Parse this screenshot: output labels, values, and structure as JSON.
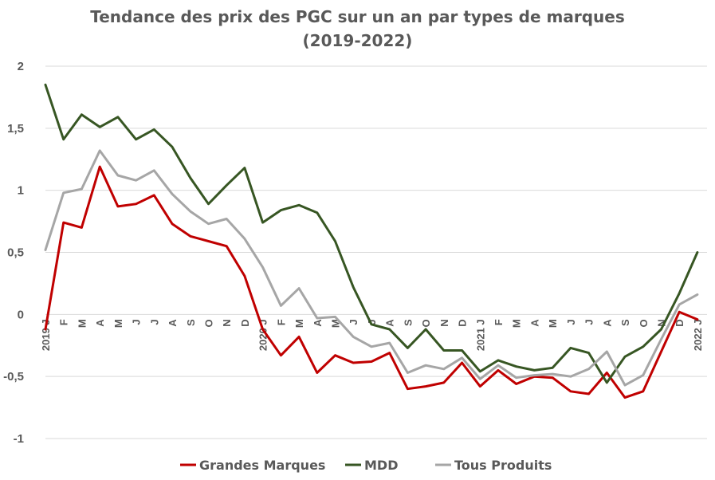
{
  "chart_data": {
    "type": "line",
    "title": [
      "Tendance des prix des PGC sur un an par types de marques",
      "(2019-2022)"
    ],
    "xlabel": "",
    "ylabel": "",
    "ylim": [
      -1,
      2
    ],
    "yticks": [
      "2",
      "1,5",
      "1",
      "0,5",
      "0",
      "-0,5",
      "-1"
    ],
    "ytick_values": [
      2,
      1.5,
      1,
      0.5,
      0,
      -0.5,
      -1
    ],
    "grid": true,
    "legend_position": "bottom",
    "x": [
      "2019 J",
      "F",
      "M",
      "A",
      "M",
      "J",
      "J",
      "A",
      "S",
      "O",
      "N",
      "D",
      "2020 J",
      "F",
      "M",
      "A",
      "M",
      "J",
      "J",
      "A",
      "S",
      "O",
      "N",
      "D",
      "2021 J",
      "F",
      "M",
      "A",
      "M",
      "J",
      "J",
      "A",
      "S",
      "O",
      "N",
      "D",
      "2022 J"
    ],
    "series": [
      {
        "name": "Grandes Marques",
        "color": "#c00000",
        "values": [
          -0.12,
          0.74,
          0.7,
          1.19,
          0.87,
          0.89,
          0.96,
          0.73,
          0.63,
          0.59,
          0.55,
          0.31,
          -0.12,
          -0.33,
          -0.18,
          -0.47,
          -0.33,
          -0.39,
          -0.38,
          -0.31,
          -0.6,
          -0.58,
          -0.55,
          -0.39,
          -0.58,
          -0.45,
          -0.56,
          -0.5,
          -0.51,
          -0.62,
          -0.64,
          -0.47,
          -0.67,
          -0.62,
          -0.3,
          0.02,
          -0.04
        ]
      },
      {
        "name": "MDD",
        "color": "#375623",
        "values": [
          1.85,
          1.41,
          1.61,
          1.51,
          1.59,
          1.41,
          1.49,
          1.35,
          1.1,
          0.89,
          1.04,
          1.18,
          0.74,
          0.84,
          0.88,
          0.82,
          0.59,
          0.22,
          -0.08,
          -0.12,
          -0.27,
          -0.12,
          -0.29,
          -0.29,
          -0.46,
          -0.37,
          -0.42,
          -0.45,
          -0.43,
          -0.27,
          -0.31,
          -0.55,
          -0.34,
          -0.26,
          -0.12,
          0.17,
          0.5
        ]
      },
      {
        "name": "Tous Produits",
        "color": "#a6a6a6",
        "values": [
          0.52,
          0.98,
          1.01,
          1.32,
          1.12,
          1.08,
          1.16,
          0.97,
          0.83,
          0.73,
          0.77,
          0.61,
          0.38,
          0.07,
          0.21,
          -0.03,
          -0.02,
          -0.18,
          -0.26,
          -0.23,
          -0.47,
          -0.41,
          -0.44,
          -0.35,
          -0.52,
          -0.41,
          -0.51,
          -0.49,
          -0.48,
          -0.5,
          -0.44,
          -0.3,
          -0.57,
          -0.49,
          -0.2,
          0.08,
          0.16
        ]
      }
    ]
  }
}
